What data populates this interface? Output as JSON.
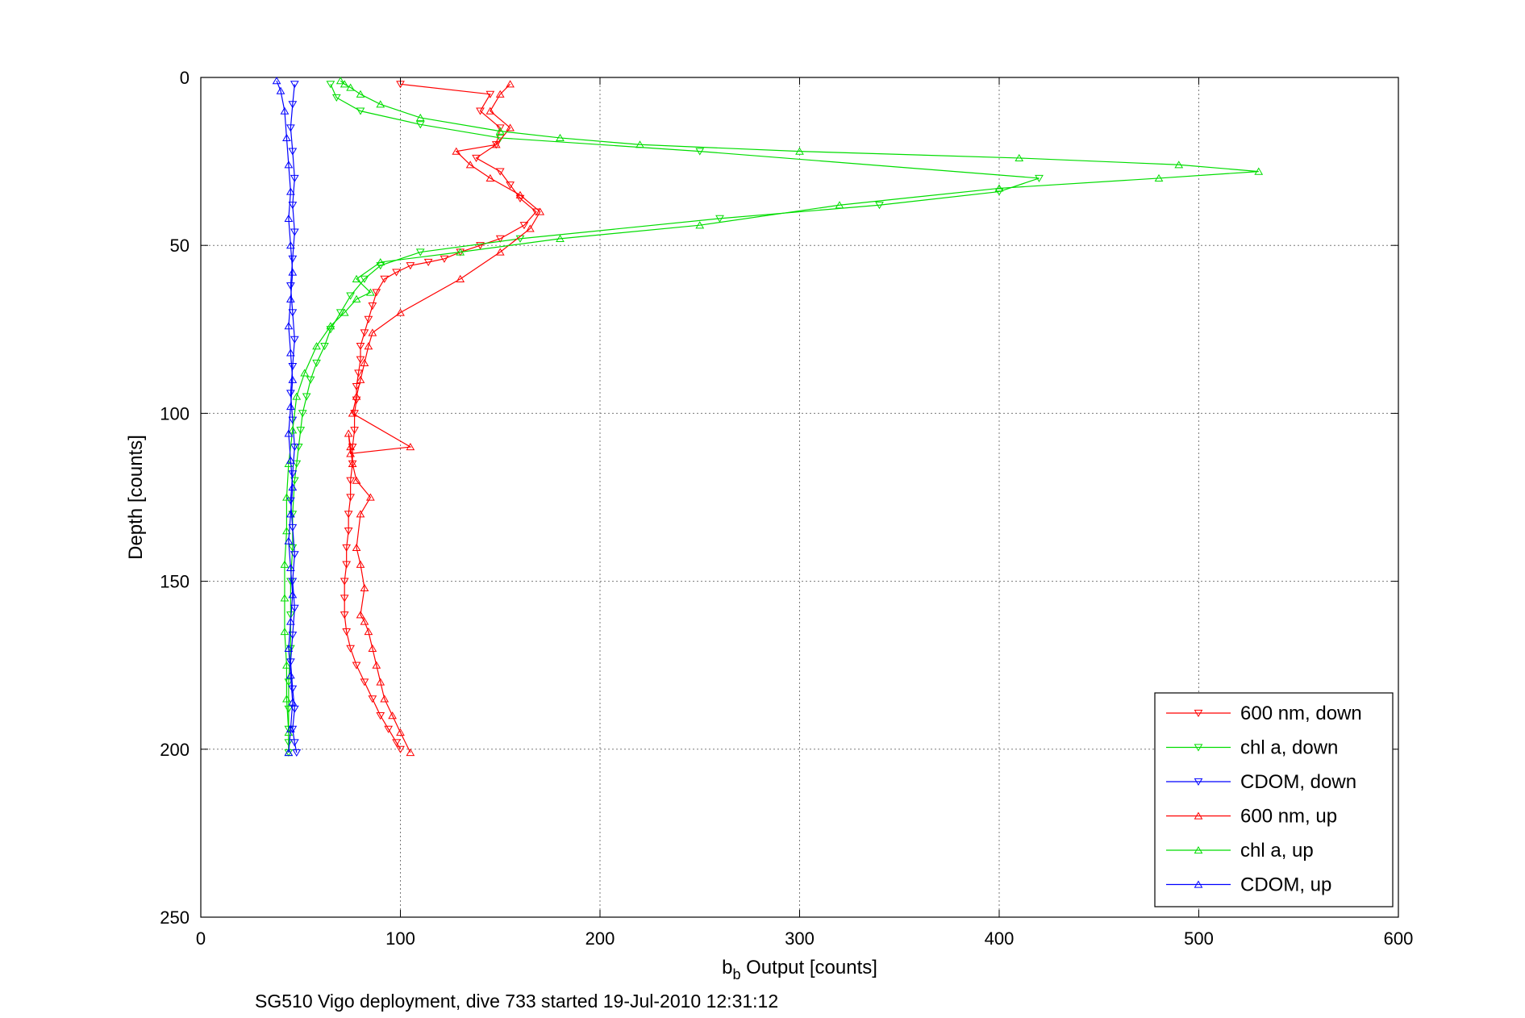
{
  "chart_data": {
    "type": "line",
    "title": "",
    "xlabel": "b",
    "xlabel_sub": "b",
    "xlabel_rest": " Output [counts]",
    "ylabel": "Depth [counts]",
    "caption": "SG510 Vigo deployment, dive 733 started 19-Jul-2010 12:31:12",
    "xlim": [
      0,
      600
    ],
    "ylim": [
      0,
      250
    ],
    "y_reversed": true,
    "grid": true,
    "legend_position": "bottom-right",
    "xticks": [
      "0",
      "100",
      "200",
      "300",
      "400",
      "500",
      "600"
    ],
    "yticks": [
      "0",
      "50",
      "100",
      "150",
      "200",
      "250"
    ],
    "series": [
      {
        "name": "600 nm, down",
        "color": "#ff0000",
        "marker": "triangle-down",
        "x": [
          100,
          145,
          140,
          150,
          148,
          138,
          150,
          155,
          160,
          168,
          162,
          150,
          140,
          130,
          122,
          114,
          105,
          98,
          92,
          88,
          86,
          84,
          82,
          80,
          80,
          79,
          78,
          78,
          77,
          77,
          76,
          76,
          75,
          75,
          74,
          74,
          73,
          73,
          72,
          72,
          72,
          73,
          75,
          78,
          82,
          86,
          90,
          94,
          98,
          100
        ],
        "y": [
          2,
          5,
          10,
          15,
          20,
          24,
          28,
          32,
          36,
          40,
          44,
          48,
          50,
          52,
          54,
          55,
          56,
          58,
          60,
          64,
          68,
          72,
          76,
          80,
          84,
          88,
          92,
          96,
          100,
          105,
          110,
          115,
          120,
          125,
          130,
          135,
          140,
          145,
          150,
          155,
          160,
          165,
          170,
          175,
          180,
          185,
          190,
          194,
          198,
          200
        ]
      },
      {
        "name": "chl a, down",
        "color": "#00dd00",
        "marker": "triangle-down",
        "x": [
          65,
          68,
          80,
          110,
          150,
          250,
          420,
          400,
          340,
          260,
          160,
          110,
          90,
          82,
          75,
          70,
          65,
          62,
          58,
          55,
          53,
          51,
          50,
          49,
          48,
          47,
          46,
          46,
          45,
          45,
          45,
          44,
          44,
          44,
          44,
          44
        ],
        "y": [
          2,
          6,
          10,
          14,
          18,
          22,
          30,
          34,
          38,
          42,
          48,
          52,
          56,
          60,
          65,
          70,
          75,
          80,
          85,
          90,
          95,
          100,
          105,
          110,
          115,
          120,
          130,
          140,
          150,
          160,
          170,
          180,
          188,
          194,
          198,
          201
        ]
      },
      {
        "name": "CDOM, down",
        "color": "#0000ff",
        "marker": "triangle-down",
        "x": [
          47,
          46,
          45,
          46,
          47,
          46,
          47,
          46,
          45,
          46,
          47,
          46,
          45,
          46,
          47,
          46,
          45,
          46,
          47,
          46,
          47,
          46,
          45,
          46,
          47,
          46,
          47,
          48
        ],
        "y": [
          2,
          8,
          15,
          22,
          30,
          38,
          46,
          54,
          62,
          70,
          78,
          86,
          94,
          102,
          110,
          118,
          126,
          134,
          142,
          150,
          158,
          166,
          174,
          182,
          188,
          194,
          198,
          201
        ]
      },
      {
        "name": "600 nm, up",
        "color": "#ff0000",
        "marker": "triangle-up",
        "x": [
          105,
          100,
          96,
          92,
          90,
          88,
          86,
          84,
          82,
          80,
          82,
          80,
          78,
          80,
          85,
          78,
          76,
          75,
          74,
          75,
          105,
          76,
          78,
          80,
          82,
          84,
          86,
          100,
          130,
          150,
          165,
          170,
          160,
          145,
          135,
          128,
          148,
          155,
          145,
          150,
          155
        ],
        "y": [
          201,
          195,
          190,
          185,
          180,
          175,
          170,
          165,
          162,
          160,
          152,
          145,
          140,
          130,
          125,
          120,
          115,
          110,
          106,
          112,
          110,
          100,
          95,
          90,
          85,
          80,
          76,
          70,
          60,
          52,
          45,
          40,
          35,
          30,
          26,
          22,
          20,
          15,
          10,
          5,
          2
        ]
      },
      {
        "name": "chl a, up",
        "color": "#00dd00",
        "marker": "triangle-up",
        "x": [
          44,
          44,
          43,
          43,
          42,
          42,
          42,
          43,
          43,
          44,
          46,
          48,
          52,
          58,
          65,
          72,
          78,
          85,
          78,
          90,
          130,
          180,
          250,
          320,
          400,
          480,
          530,
          490,
          410,
          300,
          220,
          180,
          150,
          110,
          90,
          80,
          75,
          72,
          70
        ],
        "y": [
          201,
          195,
          185,
          175,
          165,
          155,
          145,
          135,
          125,
          115,
          105,
          95,
          88,
          80,
          74,
          70,
          66,
          64,
          60,
          55,
          52,
          48,
          44,
          38,
          33,
          30,
          28,
          26,
          24,
          22,
          20,
          18,
          16,
          12,
          8,
          5,
          3,
          2,
          1
        ]
      },
      {
        "name": "CDOM, up",
        "color": "#0000ff",
        "marker": "triangle-up",
        "x": [
          44,
          45,
          46,
          45,
          44,
          45,
          46,
          45,
          44,
          45,
          46,
          45,
          44,
          45,
          46,
          45,
          44,
          45,
          46,
          45,
          44,
          45,
          44,
          43,
          42,
          40,
          38
        ],
        "y": [
          201,
          194,
          186,
          178,
          170,
          162,
          154,
          146,
          138,
          130,
          122,
          114,
          106,
          98,
          90,
          82,
          74,
          66,
          58,
          50,
          42,
          34,
          26,
          18,
          10,
          4,
          1
        ]
      }
    ]
  }
}
